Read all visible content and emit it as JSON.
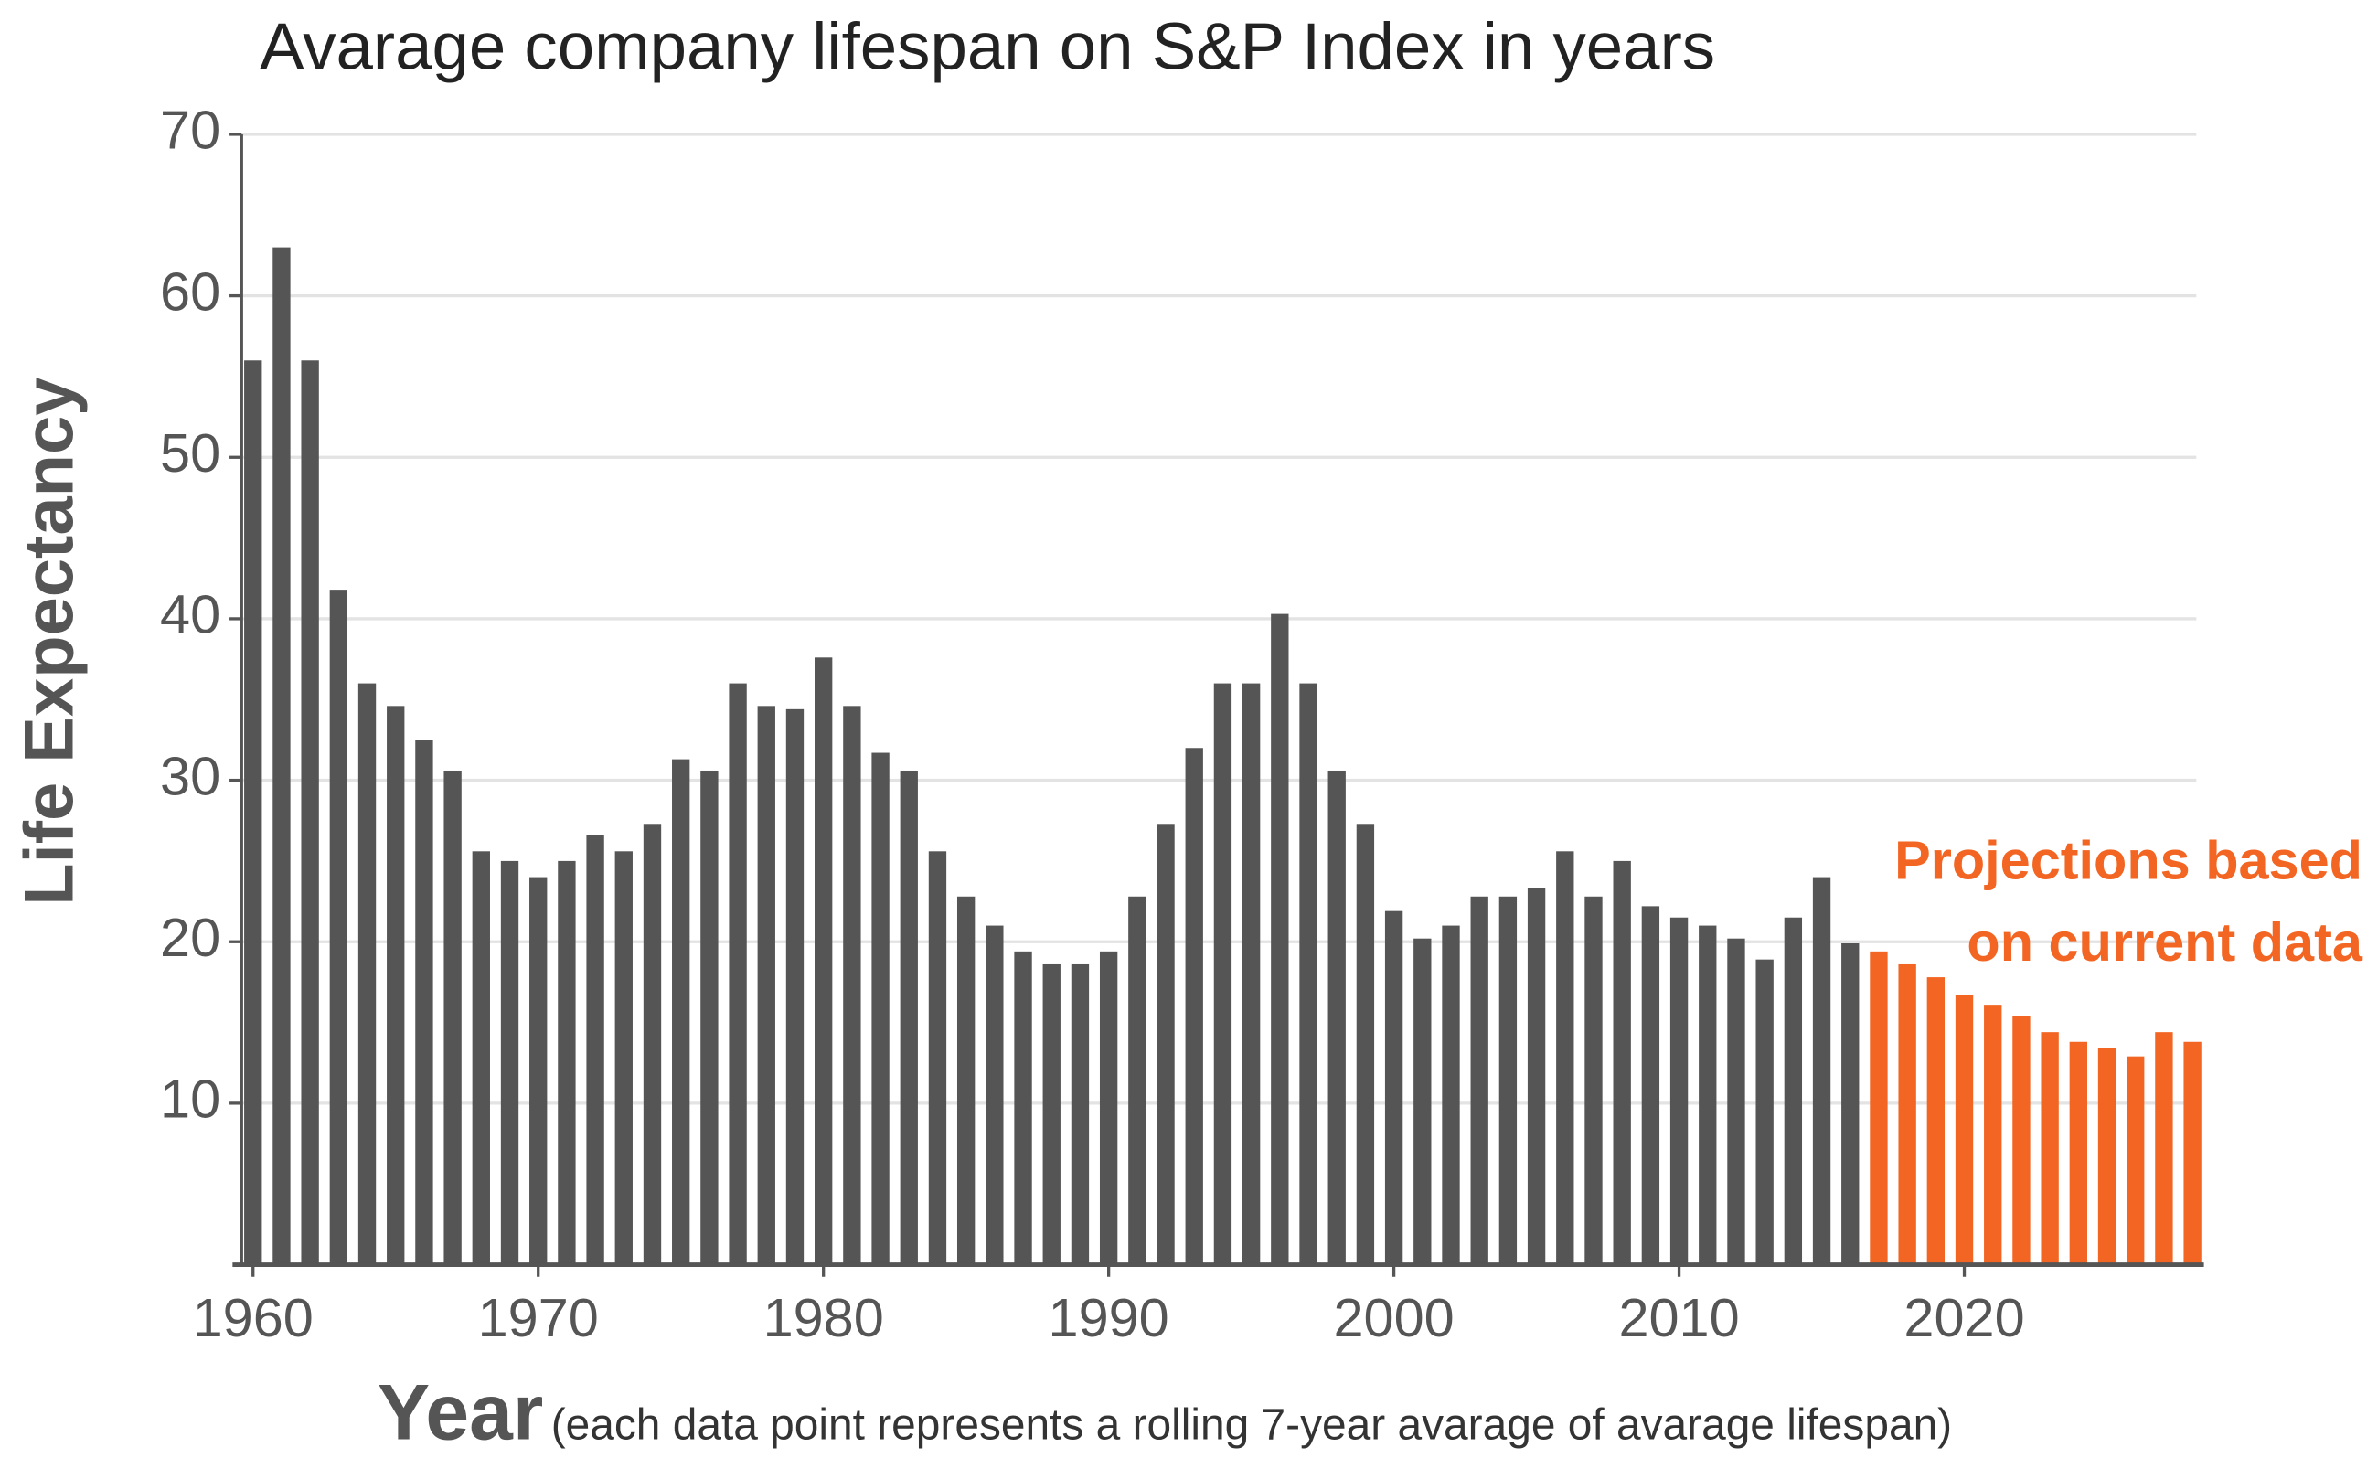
{
  "chart_data": {
    "type": "bar",
    "title": "Avarage company lifespan on S&P Index in years",
    "ylabel": "Life Expectancy",
    "xlabel": "Year",
    "xlabel_note": "(each data point represents a rolling 7-year avarage of avarage lifespan)",
    "annotation": [
      "Projections based",
      "on current data"
    ],
    "annotation_color": "#f26522",
    "series": [
      {
        "color": "#555555",
        "x": [
          1960,
          1961,
          1962,
          1963,
          1964,
          1965,
          1966,
          1967,
          1968,
          1969,
          1970,
          1971,
          1972,
          1973,
          1974,
          1975,
          1976,
          1977,
          1978,
          1979,
          1980,
          1981,
          1982,
          1983,
          1984,
          1985,
          1986,
          1987,
          1988,
          1989,
          1990,
          1991,
          1992,
          1993,
          1994,
          1995,
          1996,
          1997,
          1998,
          1999,
          2000,
          2001,
          2002,
          2003,
          2004,
          2005,
          2006,
          2007,
          2008,
          2009,
          2010,
          2011,
          2012,
          2013,
          2014,
          2015,
          2016
        ],
        "values": [
          56,
          63,
          56,
          41.8,
          36,
          34.6,
          32.5,
          30.6,
          25.6,
          25,
          24,
          25,
          26.6,
          25.6,
          27.3,
          31.3,
          30.6,
          36,
          34.6,
          34.4,
          37.6,
          34.6,
          31.7,
          30.6,
          25.6,
          22.8,
          21,
          19.4,
          18.6,
          18.6,
          19.4,
          22.8,
          27.3,
          32,
          36,
          36,
          40.3,
          36,
          30.6,
          27.3,
          21.9,
          20.2,
          21,
          22.8,
          22.8,
          23.3,
          25.6,
          22.8,
          25,
          22.2,
          21.5,
          21,
          20.2,
          18.9,
          21.5,
          24,
          19.9
        ]
      },
      {
        "color": "#f26522",
        "x": [
          2017,
          2018,
          2019,
          2020,
          2021,
          2022,
          2023,
          2024,
          2025,
          2026,
          2027,
          2028
        ],
        "values": [
          19.4,
          18.6,
          17.8,
          16.7,
          16.1,
          15.4,
          14.4,
          13.8,
          13.4,
          12.9,
          14.4,
          13.8
        ]
      }
    ],
    "xlim": [
      1959.6,
      2028.4
    ],
    "xticks": [
      1960,
      1970,
      1980,
      1990,
      2000,
      2010,
      2020
    ],
    "ylim": [
      0,
      70
    ],
    "yticks": [
      10,
      20,
      30,
      40,
      50,
      60,
      70
    ],
    "grid": true
  }
}
